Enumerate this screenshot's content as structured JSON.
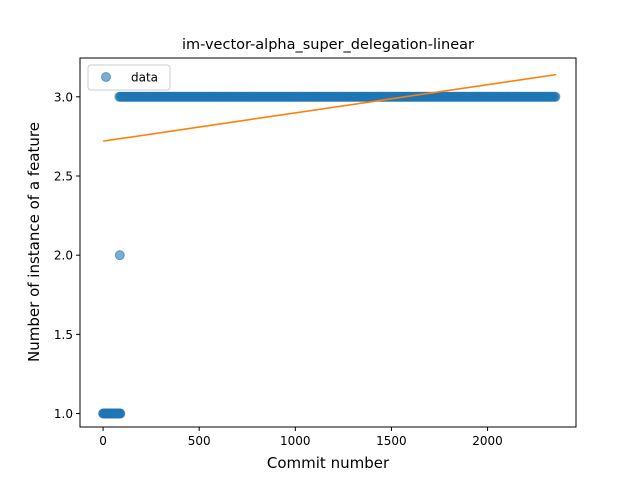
{
  "chart_data": {
    "type": "scatter",
    "title": "im-vector-alpha_super_delegation-linear",
    "xlabel": "Commit number",
    "ylabel": "Number of instance of a feature",
    "xlim": [
      -120,
      2460
    ],
    "ylim": [
      0.915,
      3.245
    ],
    "xticks": [
      0,
      500,
      1000,
      1500,
      2000
    ],
    "yticks": [
      1.0,
      1.5,
      2.0,
      2.5,
      3.0
    ],
    "ytick_labels": [
      "1.0",
      "1.5",
      "2.0",
      "2.5",
      "3.0"
    ],
    "grid": false,
    "legend": {
      "position": "top-left",
      "entries": [
        "data"
      ]
    },
    "colors": {
      "data": "#1f77b4",
      "fit": "#ff7f0e"
    },
    "series": [
      {
        "name": "data",
        "kind": "points",
        "points": [
          {
            "x_from": 0,
            "x_to": 90,
            "step": 3,
            "y": 1.0
          },
          {
            "x_from": 87,
            "x_to": 87,
            "step": 1,
            "y": 2.0
          },
          {
            "x_from": 85,
            "x_to": 2357,
            "step": 6,
            "y": 3.0
          }
        ]
      },
      {
        "kind": "line",
        "x": [
          0,
          2357
        ],
        "y": [
          2.72,
          3.14
        ]
      }
    ]
  }
}
